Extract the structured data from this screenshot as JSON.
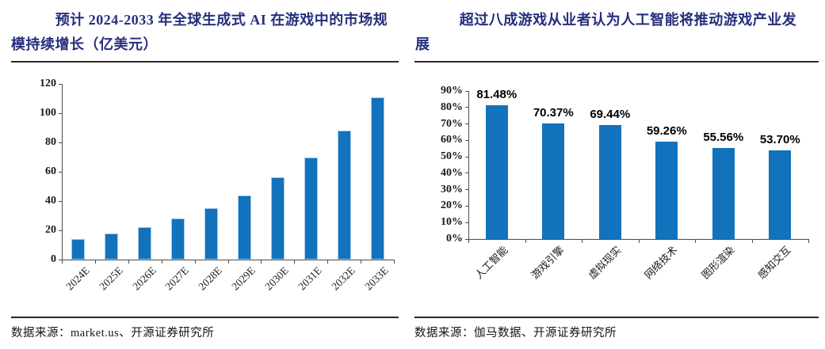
{
  "page": {
    "background": "#ffffff"
  },
  "colors": {
    "bar_blue": "#1272bc",
    "bar_border": "#a8c9e8",
    "title_navy": "#252f7d",
    "axis_gray": "#4d4d4d",
    "text_black": "#1a1a1a"
  },
  "panels": [
    {
      "source": "数据来源：market.us、开源证券研究所"
    },
    {
      "source": "数据来源：伽马数据、开源证券研究所"
    }
  ],
  "chart_data": [
    {
      "type": "bar",
      "title": "预计 2024-2033 年全球生成式 AI 在游戏中的市场规模持续增长（亿美元）",
      "categories": [
        "2024E",
        "2025E",
        "2026E",
        "2027E",
        "2028E",
        "2029E",
        "2030E",
        "2031E",
        "2032E",
        "2033E"
      ],
      "values": [
        14,
        18,
        22,
        28,
        35,
        44,
        56,
        70,
        88,
        111
      ],
      "xlabel": "",
      "ylabel": "",
      "ylim": [
        0,
        120
      ],
      "yticks": [
        "0",
        "20",
        "40",
        "60",
        "80",
        "100",
        "120"
      ],
      "grid": false,
      "legend": false,
      "bar_color": "#1272bc"
    },
    {
      "type": "bar",
      "title": "超过八成游戏从业者认为人工智能将推动游戏产业发展",
      "categories": [
        "人工智能",
        "游戏引擎",
        "虚拟现实",
        "网络技术",
        "图形渲染",
        "感知交互"
      ],
      "values": [
        81.48,
        70.37,
        69.44,
        59.26,
        55.56,
        53.7
      ],
      "data_labels": [
        "81.48%",
        "70.37%",
        "69.44%",
        "59.26%",
        "55.56%",
        "53.70%"
      ],
      "xlabel": "",
      "ylabel": "",
      "ylim": [
        0,
        90
      ],
      "yticks": [
        "0%",
        "10%",
        "20%",
        "30%",
        "40%",
        "50%",
        "60%",
        "70%",
        "80%",
        "90%"
      ],
      "grid": false,
      "legend": false,
      "bar_color": "#1272bc"
    }
  ]
}
